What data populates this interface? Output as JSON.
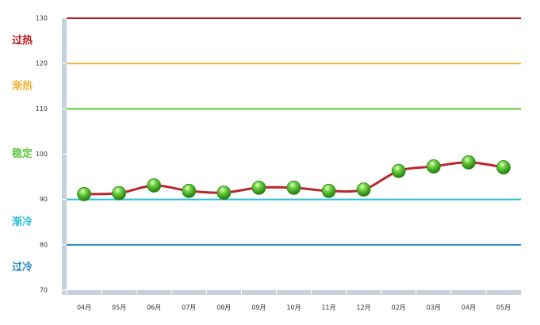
{
  "chart_data": {
    "type": "line",
    "categories": [
      "04月",
      "05月",
      "06月",
      "07月",
      "08月",
      "09月",
      "10月",
      "11月",
      "12月",
      "02月",
      "03月",
      "04月",
      "05月"
    ],
    "series": [
      {
        "color": "#b8272c",
        "values": [
          91.2,
          91.4,
          93.1,
          91.9,
          91.5,
          92.6,
          92.6,
          91.9,
          92.2,
          96.3,
          97.3,
          98.2,
          97.1
        ]
      }
    ],
    "ylim": [
      70,
      130
    ],
    "yticks": [
      70,
      80,
      90,
      100,
      110,
      120,
      130
    ],
    "zones": [
      {
        "text": "过热",
        "color": "#c0141a",
        "from": 120,
        "to": 130
      },
      {
        "text": "渐热",
        "color": "#f0b43c",
        "from": 110,
        "to": 120
      },
      {
        "text": "稳定",
        "color": "#5cc83a",
        "from": 90,
        "to": 110
      },
      {
        "text": "渐冷",
        "color": "#28c0d8",
        "from": 80,
        "to": 90
      },
      {
        "text": "过冷",
        "color": "#2a88c8",
        "from": 70,
        "to": 80
      }
    ]
  }
}
